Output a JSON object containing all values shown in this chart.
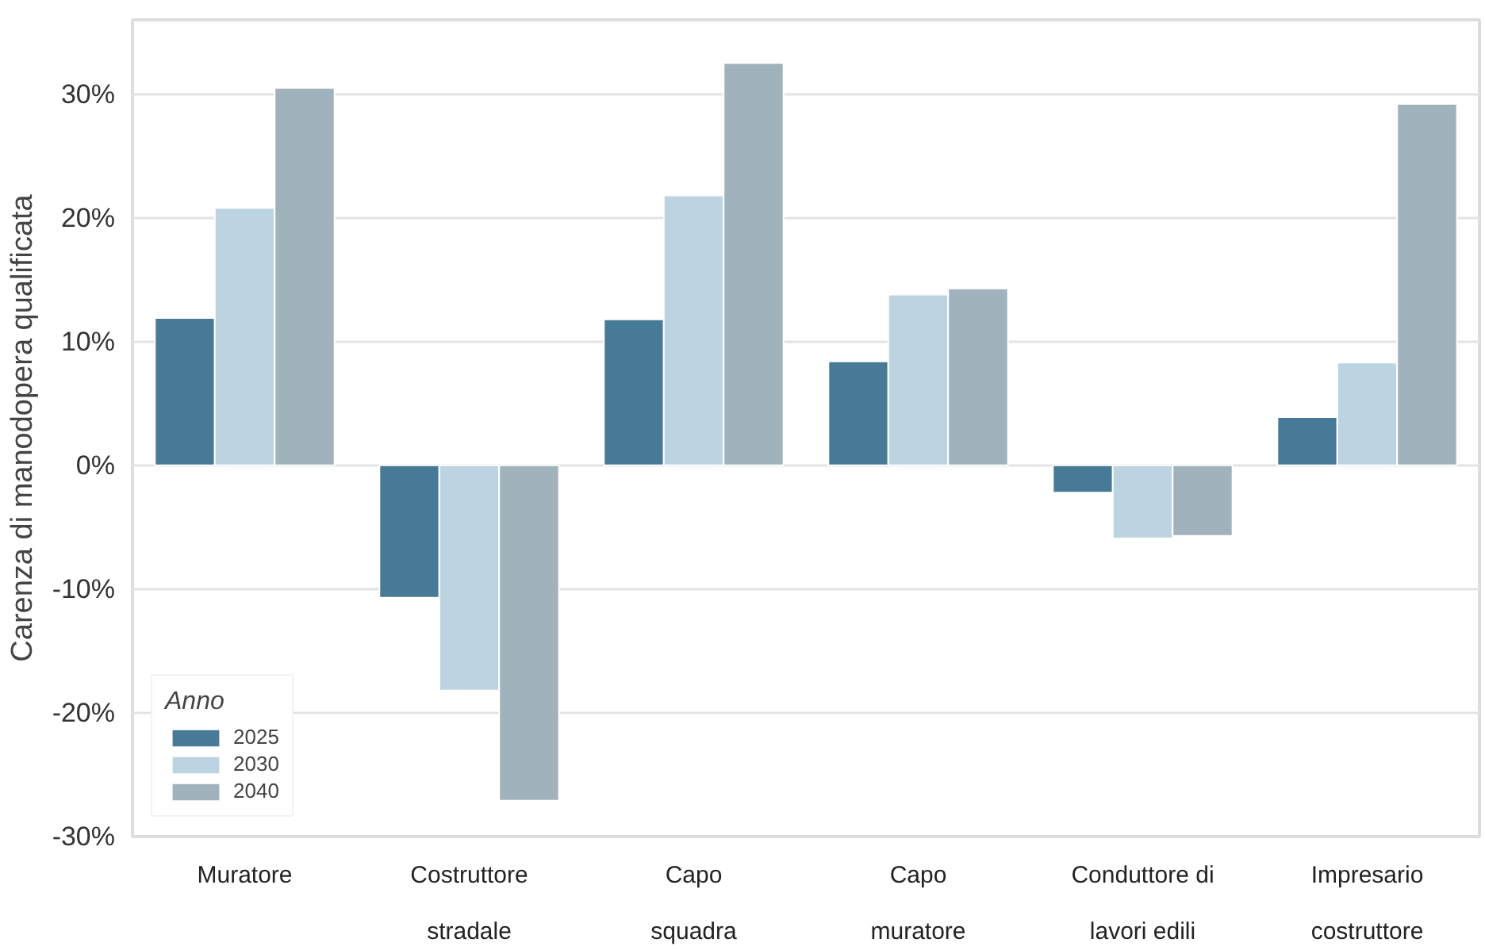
{
  "chart_data": {
    "type": "bar",
    "ylabel": "Carenza di manodopera qualificata",
    "legend_title": "Anno",
    "categories": [
      "Muratore",
      "Costruttore\nstradale",
      "Capo\nsquadra",
      "Capo\nmuratore",
      "Conduttore di\nlavori edili",
      "Impresario\ncostruttore"
    ],
    "series": [
      {
        "name": "2025",
        "color": "#467a97",
        "values": [
          11.9,
          -10.7,
          11.8,
          8.4,
          -2.2,
          3.9
        ]
      },
      {
        "name": "2030",
        "color": "#bcd4e2",
        "values": [
          20.8,
          -18.2,
          21.8,
          13.8,
          -5.9,
          8.3
        ]
      },
      {
        "name": "2040",
        "color": "#a0b3bd",
        "values": [
          30.5,
          -27.1,
          32.5,
          14.3,
          -5.7,
          29.2
        ]
      }
    ],
    "ylim": [
      -30,
      36
    ],
    "yticks": [
      {
        "value": -30,
        "label": "-30%"
      },
      {
        "value": -20,
        "label": "-20%"
      },
      {
        "value": -10,
        "label": "-10%"
      },
      {
        "value": 0,
        "label": "0%"
      },
      {
        "value": 10,
        "label": "10%"
      },
      {
        "value": 20,
        "label": "20%"
      },
      {
        "value": 30,
        "label": "30%"
      }
    ],
    "grid": "y",
    "legend": "bottom left"
  }
}
